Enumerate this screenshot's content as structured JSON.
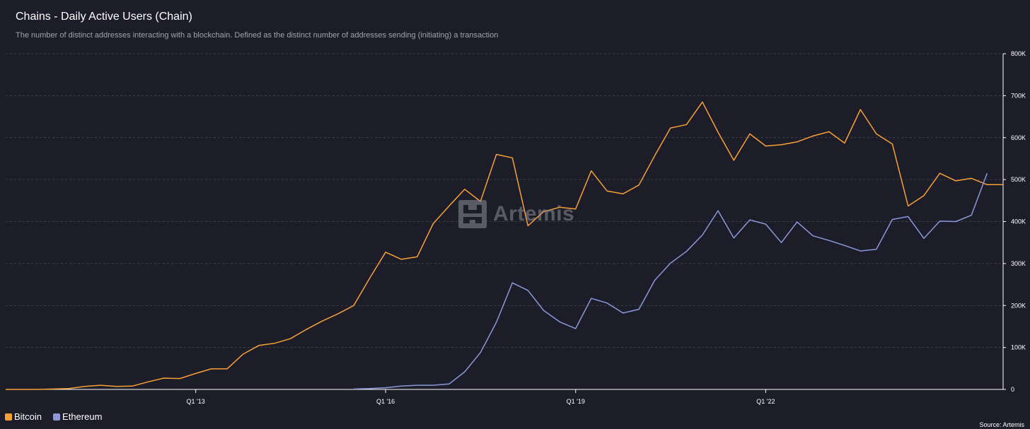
{
  "header": {
    "title": "Chains - Daily Active Users (Chain)",
    "subtitle": "The number of distinct addresses interacting with a blockchain. Defined as the distinct number of addresses sending (initiating) a transaction"
  },
  "watermark": {
    "text": "Artemis",
    "icon": "artemis-logo-icon"
  },
  "footer": {
    "source": "Source: Artemis"
  },
  "colors": {
    "background": "#1c1d29",
    "grid": "#4a4c58",
    "bitcoin": "#f7a035",
    "ethereum": "#8c98d8"
  },
  "chart_data": {
    "type": "line",
    "title": "Chains - Daily Active Users (Chain)",
    "xlabel": "",
    "ylabel": "",
    "ylim": [
      0,
      800000
    ],
    "y_ticks": [
      0,
      100000,
      200000,
      300000,
      400000,
      500000,
      600000,
      700000,
      800000
    ],
    "y_tick_labels": [
      "0",
      "100K",
      "200K",
      "300K",
      "400K",
      "500K",
      "600K",
      "700K",
      "800K"
    ],
    "x_range": [
      "2010-01-01",
      "2025-10-01"
    ],
    "x_ticks": [
      "2013-01-01",
      "2016-01-01",
      "2019-01-01",
      "2022-01-01"
    ],
    "x_tick_labels": [
      "Q1 '13",
      "Q1 '16",
      "Q1 '19",
      "Q1 '22"
    ],
    "grid": true,
    "legend_position": "bottom-left",
    "series": [
      {
        "name": "Bitcoin",
        "color": "#f7a035",
        "x": [
          "2010-01-01",
          "2010-04-01",
          "2010-07-01",
          "2010-10-01",
          "2011-01-01",
          "2011-04-01",
          "2011-07-01",
          "2011-10-01",
          "2012-01-01",
          "2012-04-01",
          "2012-07-01",
          "2012-10-01",
          "2013-01-01",
          "2013-04-01",
          "2013-07-01",
          "2013-10-01",
          "2014-01-01",
          "2014-04-01",
          "2014-07-01",
          "2014-10-01",
          "2015-01-01",
          "2015-04-01",
          "2015-07-01",
          "2015-10-01",
          "2016-01-01",
          "2016-04-01",
          "2016-07-01",
          "2016-10-01",
          "2017-01-01",
          "2017-04-01",
          "2017-07-01",
          "2017-10-01",
          "2018-01-01",
          "2018-04-01",
          "2018-07-01",
          "2018-10-01",
          "2019-01-01",
          "2019-04-01",
          "2019-07-01",
          "2019-10-01",
          "2020-01-01",
          "2020-04-01",
          "2020-07-01",
          "2020-10-01",
          "2021-01-01",
          "2021-04-01",
          "2021-07-01",
          "2021-10-01",
          "2022-01-01",
          "2022-04-01",
          "2022-07-01",
          "2022-10-01",
          "2023-01-01",
          "2023-04-01",
          "2023-07-01",
          "2023-10-01",
          "2024-01-01",
          "2024-04-01",
          "2024-07-01",
          "2024-10-01",
          "2025-01-01",
          "2025-04-01",
          "2025-07-01",
          "2025-10-01"
        ],
        "values": [
          0,
          0,
          0,
          1000,
          2000,
          7000,
          10000,
          7000,
          8000,
          18000,
          27000,
          26000,
          38000,
          49000,
          49000,
          84000,
          105000,
          110000,
          121000,
          143000,
          163000,
          180000,
          200000,
          265000,
          327000,
          310000,
          316000,
          395000,
          437000,
          477000,
          448000,
          560000,
          552000,
          390000,
          424000,
          434000,
          430000,
          521000,
          473000,
          466000,
          487000,
          557000,
          623000,
          631000,
          685000,
          613000,
          546000,
          609000,
          580000,
          583000,
          590000,
          604000,
          614000,
          587000,
          667000,
          609000,
          585000,
          437000,
          462000,
          515000,
          497000,
          503000,
          488000,
          488000
        ]
      },
      {
        "name": "Ethereum",
        "color": "#8c98d8",
        "x": [
          "2015-07-01",
          "2015-10-01",
          "2016-01-01",
          "2016-04-01",
          "2016-07-01",
          "2016-10-01",
          "2017-01-01",
          "2017-04-01",
          "2017-07-01",
          "2017-10-01",
          "2018-01-01",
          "2018-04-01",
          "2018-07-01",
          "2018-10-01",
          "2019-01-01",
          "2019-04-01",
          "2019-07-01",
          "2019-10-01",
          "2020-01-01",
          "2020-04-01",
          "2020-07-01",
          "2020-10-01",
          "2021-01-01",
          "2021-04-01",
          "2021-07-01",
          "2021-10-01",
          "2022-01-01",
          "2022-04-01",
          "2022-07-01",
          "2022-10-01",
          "2023-01-01",
          "2023-04-01",
          "2023-07-01",
          "2023-10-01",
          "2024-01-01",
          "2024-04-01",
          "2024-07-01",
          "2024-10-01",
          "2025-01-01",
          "2025-04-01",
          "2025-07-01"
        ],
        "values": [
          1000,
          2000,
          4000,
          8000,
          10000,
          10000,
          13000,
          42000,
          88000,
          160000,
          254000,
          236000,
          188000,
          161000,
          145000,
          217000,
          206000,
          182000,
          191000,
          260000,
          301000,
          329000,
          368000,
          426000,
          361000,
          404000,
          394000,
          350000,
          399000,
          366000,
          355000,
          343000,
          330000,
          334000,
          405000,
          412000,
          360000,
          401000,
          400000,
          415000,
          515000
        ]
      }
    ]
  }
}
